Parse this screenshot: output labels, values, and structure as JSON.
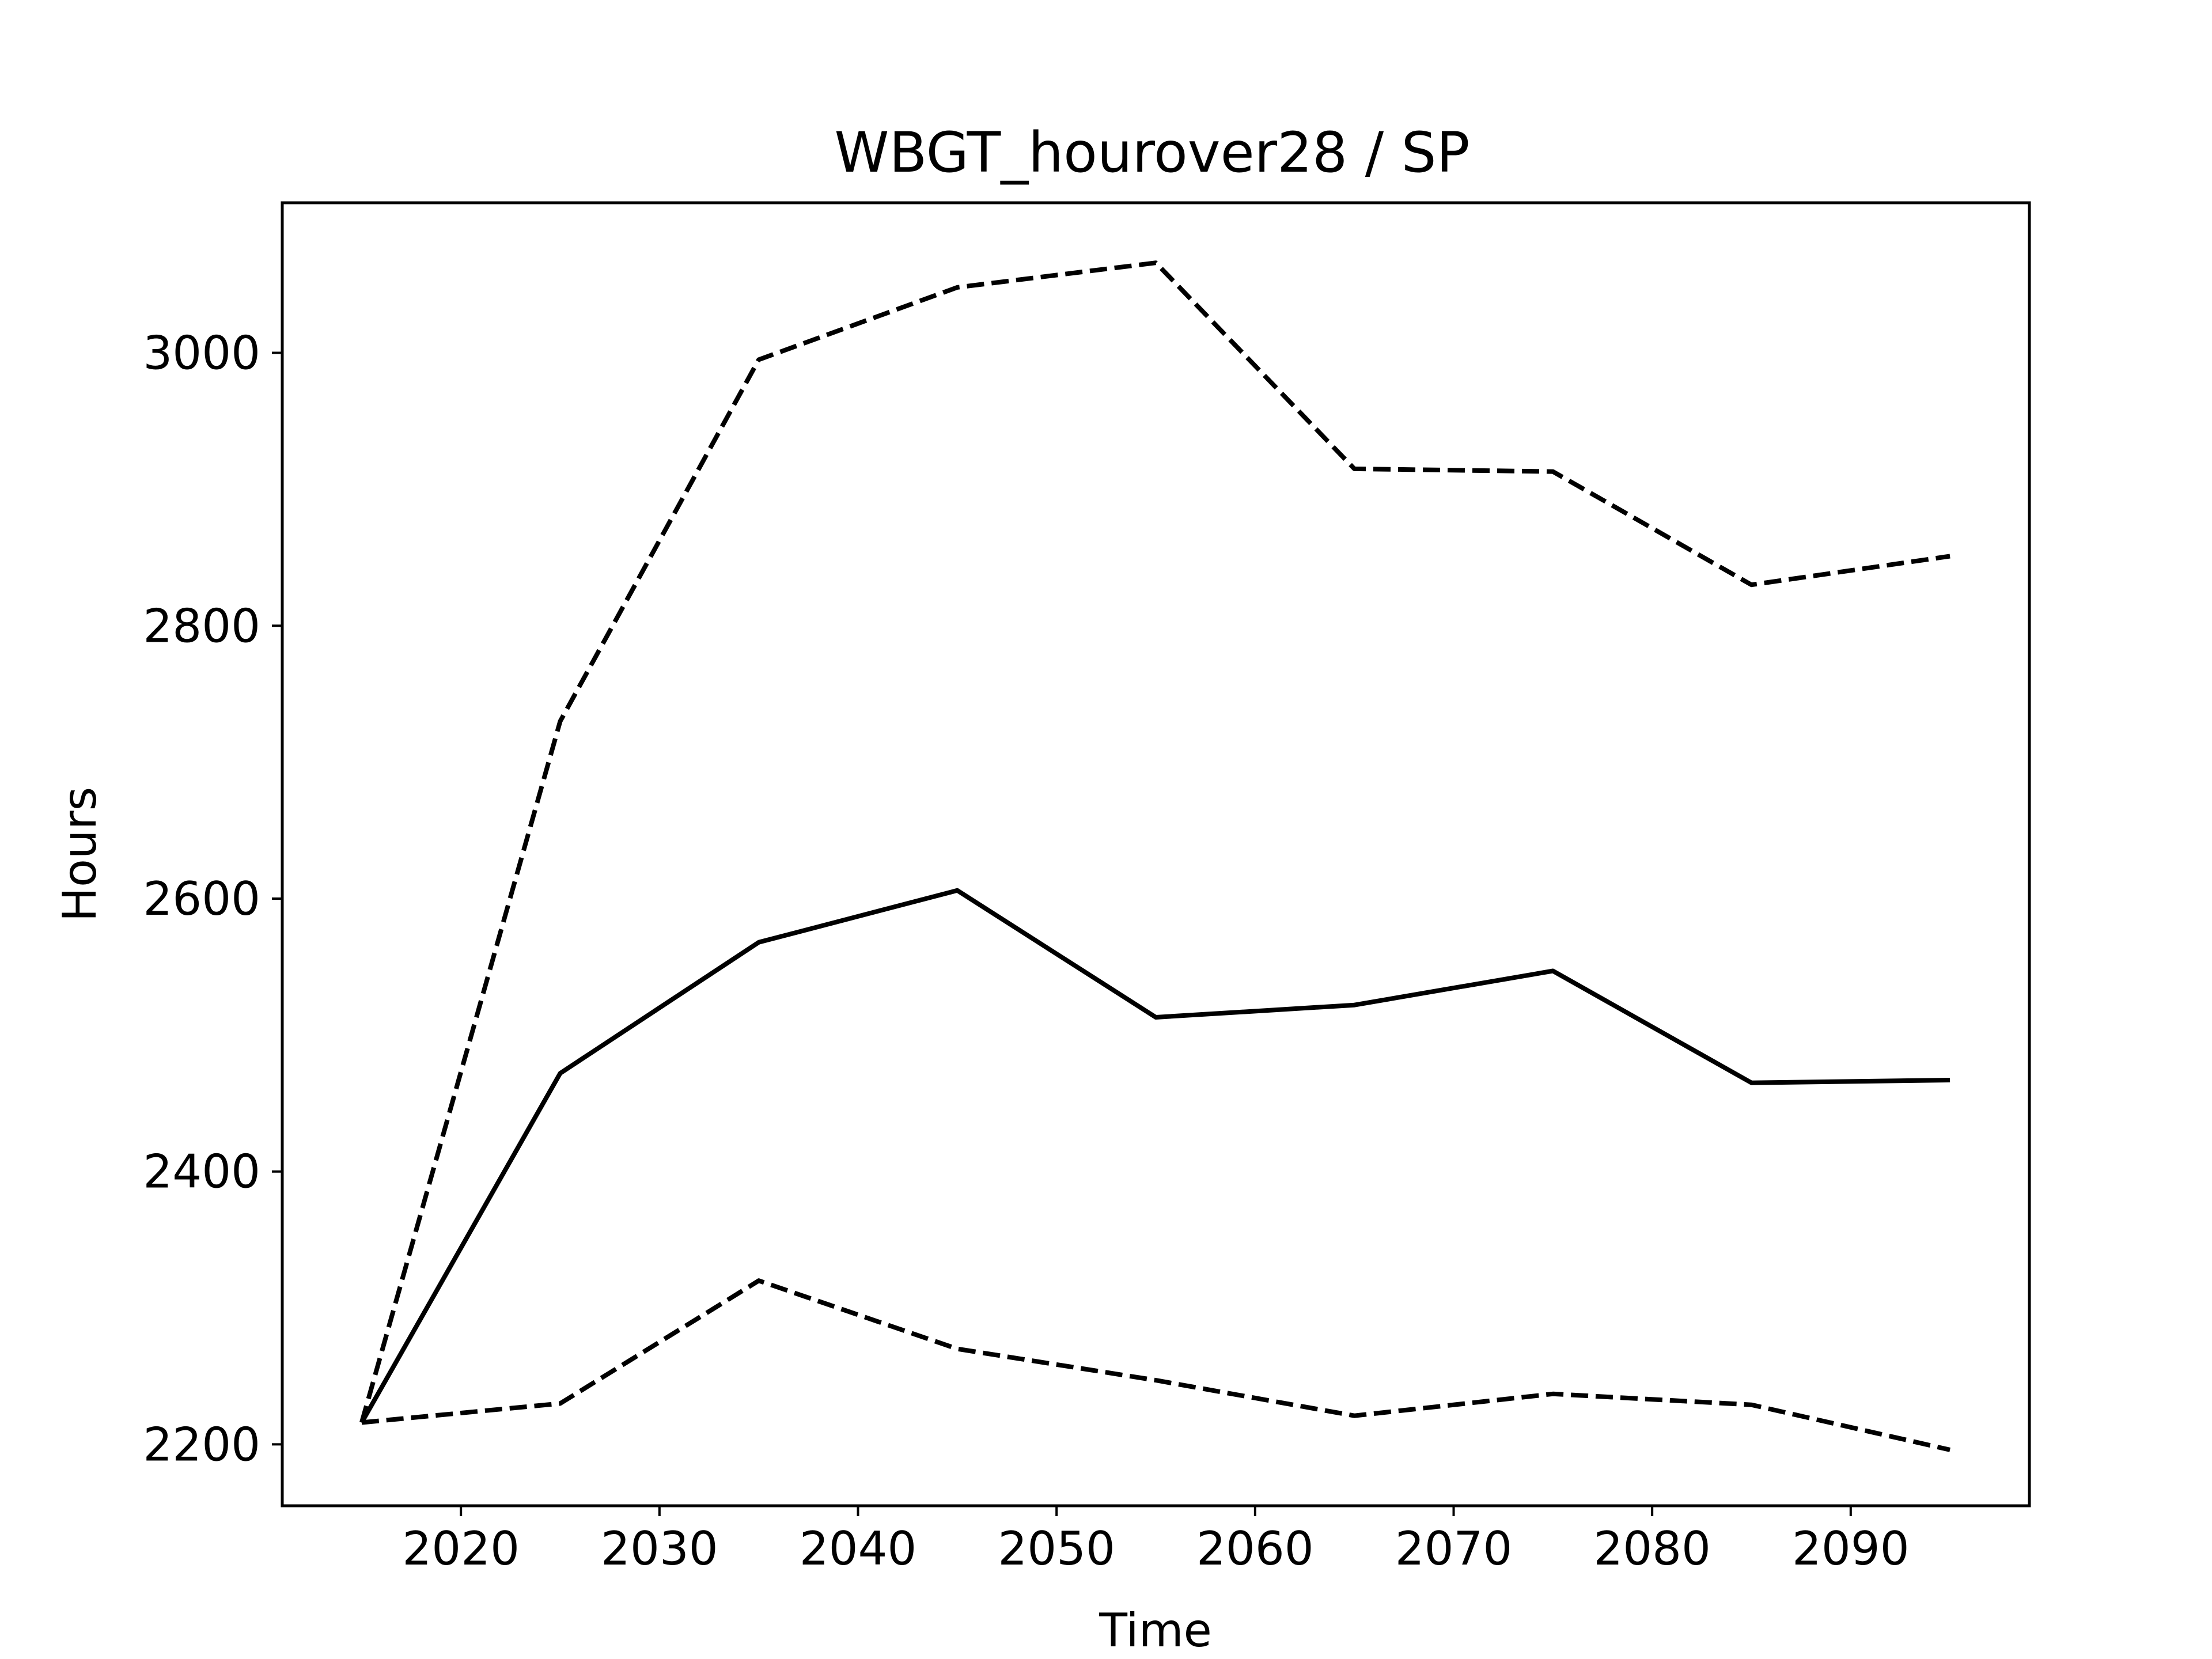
{
  "chart_data": {
    "type": "line",
    "title": "WBGT_hourover28 / SP",
    "xlabel": "Time",
    "ylabel": "Hours",
    "x": [
      2015,
      2025,
      2035,
      2045,
      2055,
      2065,
      2075,
      2085,
      2095
    ],
    "xlim": [
      2011,
      2099
    ],
    "ylim": [
      2155,
      3110
    ],
    "xticks": [
      2020,
      2030,
      2040,
      2050,
      2060,
      2070,
      2080,
      2090
    ],
    "yticks": [
      2200,
      2400,
      2600,
      2800,
      3000
    ],
    "grid": false,
    "series": [
      {
        "style": "solid",
        "color": "#000000",
        "values": [
          2216,
          2472,
          2568,
          2606,
          2513,
          2522,
          2547,
          2465,
          2467
        ]
      },
      {
        "style": "dashed",
        "color": "#000000",
        "values": [
          2216,
          2730,
          2995,
          3048,
          3066,
          2915,
          2913,
          2830,
          2851
        ]
      },
      {
        "style": "dashed",
        "color": "#000000",
        "values": [
          2216,
          2230,
          2320,
          2270,
          2247,
          2221,
          2237,
          2229,
          2196
        ]
      }
    ]
  }
}
